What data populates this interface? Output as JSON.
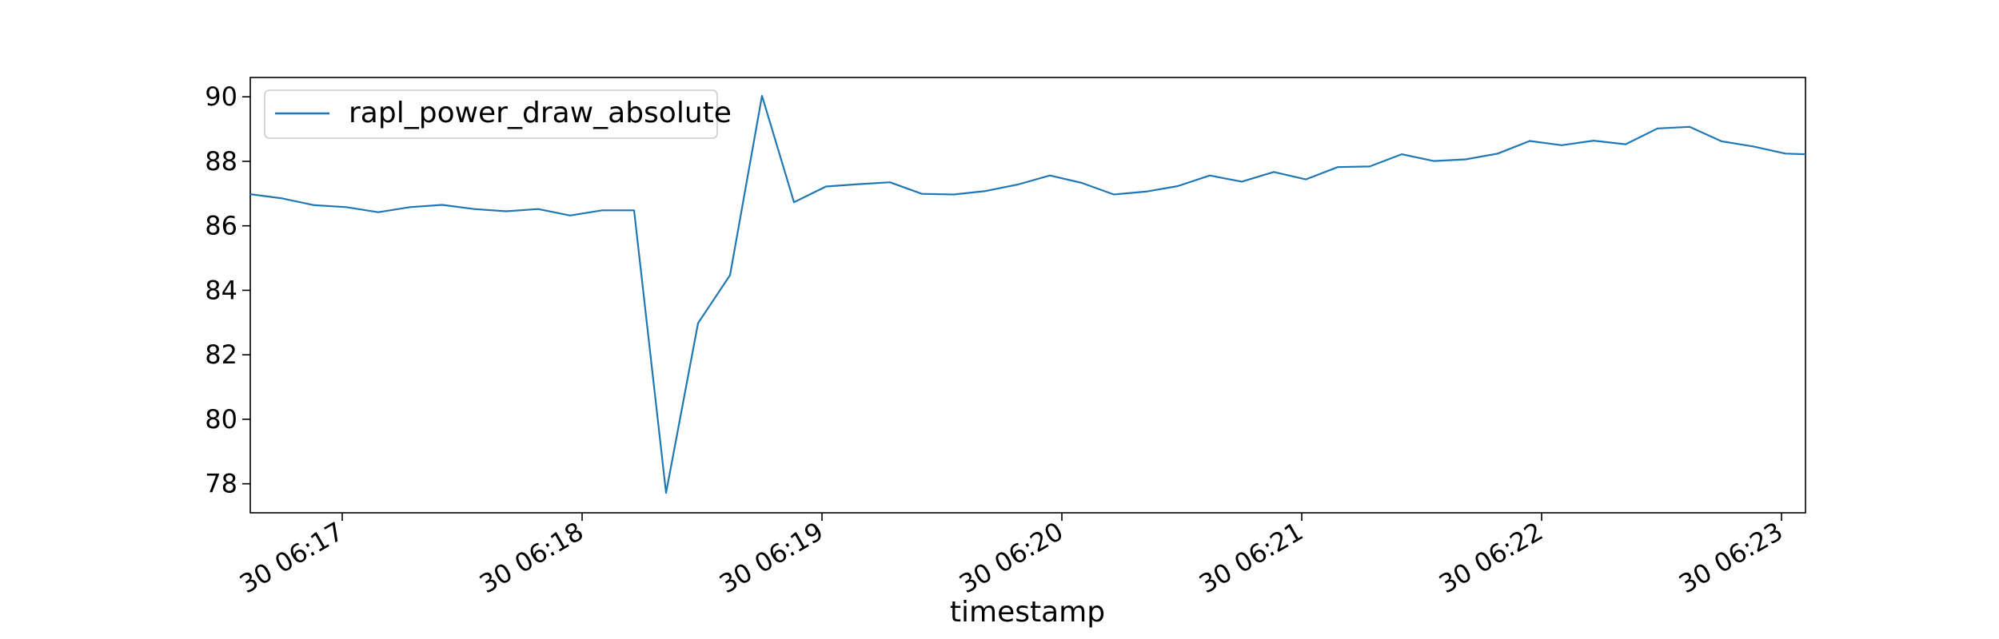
{
  "chart_data": {
    "type": "line",
    "title": "",
    "xlabel": "timestamp",
    "ylabel": "",
    "legend": {
      "placement": "top-left",
      "entries": [
        "rapl_power_draw_absolute"
      ]
    },
    "grid": false,
    "x_axis": {
      "ticks": [
        {
          "time": "06:17",
          "label": "30 06:17"
        },
        {
          "time": "06:18",
          "label": "30 06:18"
        },
        {
          "time": "06:19",
          "label": "30 06:19"
        },
        {
          "time": "06:20",
          "label": "30 06:20"
        },
        {
          "time": "06:21",
          "label": "30 06:21"
        },
        {
          "time": "06:22",
          "label": "30 06:22"
        },
        {
          "time": "06:23",
          "label": "30 06:23"
        }
      ],
      "range": [
        "06:16:37",
        "06:23:06"
      ]
    },
    "y_axis": {
      "ticks": [
        78,
        80,
        82,
        84,
        86,
        88,
        90
      ],
      "range": [
        77.1,
        90.6
      ]
    },
    "series": [
      {
        "name": "rapl_power_draw_absolute",
        "color": "#1f77b4",
        "x": [
          "06:16:37",
          "06:16:45",
          "06:16:53",
          "06:17:01",
          "06:17:09",
          "06:17:17",
          "06:17:25",
          "06:17:33",
          "06:17:41",
          "06:17:49",
          "06:17:57",
          "06:18:05",
          "06:18:13",
          "06:18:21",
          "06:18:29",
          "06:18:37",
          "06:18:45",
          "06:18:53",
          "06:19:01",
          "06:19:09",
          "06:19:17",
          "06:19:25",
          "06:19:33",
          "06:19:41",
          "06:19:49",
          "06:19:57",
          "06:20:05",
          "06:20:13",
          "06:20:21",
          "06:20:29",
          "06:20:37",
          "06:20:45",
          "06:20:53",
          "06:21:01",
          "06:21:09",
          "06:21:17",
          "06:21:25",
          "06:21:33",
          "06:21:41",
          "06:21:49",
          "06:21:57",
          "06:22:05",
          "06:22:13",
          "06:22:21",
          "06:22:29",
          "06:22:37",
          "06:22:45",
          "06:22:53",
          "06:23:01",
          "06:23:06"
        ],
        "values": [
          86.98,
          86.85,
          86.64,
          86.58,
          86.42,
          86.58,
          86.65,
          86.52,
          86.45,
          86.52,
          86.32,
          86.48,
          86.48,
          77.72,
          82.98,
          84.47,
          90.03,
          86.73,
          87.22,
          87.29,
          87.35,
          86.99,
          86.97,
          87.08,
          87.28,
          87.56,
          87.33,
          86.97,
          87.06,
          87.23,
          87.56,
          87.37,
          87.67,
          87.44,
          87.82,
          87.84,
          88.22,
          88.01,
          88.06,
          88.24,
          88.63,
          88.5,
          88.64,
          88.53,
          89.02,
          89.07,
          88.62,
          88.46,
          88.24,
          88.22
        ]
      }
    ]
  }
}
